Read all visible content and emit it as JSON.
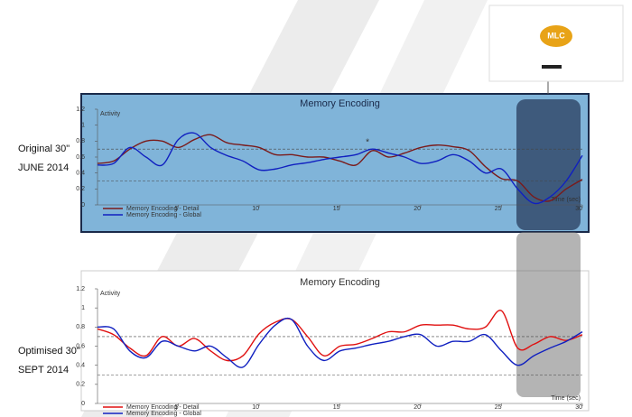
{
  "side_labels": [
    [
      "Original 30\"",
      "JUNE 2014"
    ],
    [
      "Optimised 30\"",
      "SEPT 2014"
    ]
  ],
  "thumbnail": {
    "logo": "MLC"
  },
  "chart_data": [
    {
      "type": "line",
      "title": "Memory Encoding",
      "ylabel": "Activity",
      "xlabel": "Time (sec)",
      "annotation": "*",
      "x": [
        0,
        1,
        2,
        3,
        4,
        5,
        6,
        7,
        8,
        9,
        10,
        11,
        12,
        13,
        14,
        15,
        16,
        17,
        18,
        19,
        20,
        21,
        22,
        23,
        24,
        25,
        26,
        27,
        28,
        29,
        30
      ],
      "xlim": [
        0,
        30
      ],
      "xticks": [
        5,
        10,
        15,
        20,
        25,
        30
      ],
      "ylim": [
        0,
        1.2
      ],
      "yticks": [
        0.0,
        0.2,
        0.4,
        0.6,
        0.8,
        1.0,
        1.2
      ],
      "reference_lines": [
        0.7,
        0.3
      ],
      "legend": "lower left",
      "series": [
        {
          "name": "Memory Encoding - Detail",
          "color": "#7a1a1a",
          "values": [
            0.52,
            0.55,
            0.7,
            0.8,
            0.8,
            0.72,
            0.82,
            0.88,
            0.78,
            0.75,
            0.72,
            0.63,
            0.63,
            0.6,
            0.6,
            0.55,
            0.5,
            0.68,
            0.6,
            0.65,
            0.72,
            0.75,
            0.73,
            0.68,
            0.48,
            0.33,
            0.3,
            0.1,
            0.05,
            0.2,
            0.32
          ]
        },
        {
          "name": "Memory Encoding - Global",
          "color": "#1020c0",
          "values": [
            0.5,
            0.52,
            0.72,
            0.6,
            0.5,
            0.82,
            0.9,
            0.72,
            0.62,
            0.55,
            0.44,
            0.45,
            0.5,
            0.53,
            0.57,
            0.6,
            0.63,
            0.7,
            0.65,
            0.6,
            0.52,
            0.55,
            0.63,
            0.55,
            0.4,
            0.45,
            0.2,
            0.02,
            0.1,
            0.3,
            0.62
          ]
        }
      ]
    },
    {
      "type": "line",
      "title": "Memory Encoding",
      "ylabel": "Activity",
      "xlabel": "Time (sec)",
      "x": [
        0,
        1,
        2,
        3,
        4,
        5,
        6,
        7,
        8,
        9,
        10,
        11,
        12,
        13,
        14,
        15,
        16,
        17,
        18,
        19,
        20,
        21,
        22,
        23,
        24,
        25,
        26,
        27,
        28,
        29,
        30
      ],
      "xlim": [
        0,
        30
      ],
      "xticks": [
        5,
        10,
        15,
        20,
        25,
        30
      ],
      "ylim": [
        0,
        1.2
      ],
      "yticks": [
        0.0,
        0.2,
        0.4,
        0.6,
        0.8,
        1.0,
        1.2
      ],
      "reference_lines": [
        0.7,
        0.3
      ],
      "legend": "lower left",
      "series": [
        {
          "name": "Memory Encoding - Detail",
          "color": "#e01010",
          "values": [
            0.78,
            0.72,
            0.58,
            0.5,
            0.7,
            0.6,
            0.68,
            0.55,
            0.45,
            0.5,
            0.73,
            0.85,
            0.88,
            0.7,
            0.5,
            0.6,
            0.62,
            0.68,
            0.75,
            0.75,
            0.82,
            0.82,
            0.82,
            0.78,
            0.8,
            0.97,
            0.58,
            0.62,
            0.7,
            0.66,
            0.72
          ]
        },
        {
          "name": "Memory Encoding - Global",
          "color": "#1020c0",
          "values": [
            0.8,
            0.78,
            0.55,
            0.48,
            0.65,
            0.6,
            0.55,
            0.6,
            0.48,
            0.38,
            0.62,
            0.82,
            0.88,
            0.6,
            0.45,
            0.55,
            0.58,
            0.62,
            0.65,
            0.7,
            0.72,
            0.6,
            0.65,
            0.65,
            0.72,
            0.55,
            0.4,
            0.5,
            0.58,
            0.65,
            0.75
          ]
        }
      ]
    }
  ]
}
